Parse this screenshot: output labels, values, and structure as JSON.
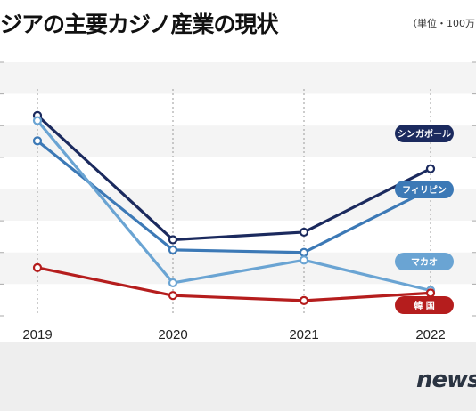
{
  "title": "ジアの主要カジノ産業の現状",
  "unit_note": "（単位・100万",
  "watermark": "news",
  "chart_data": {
    "type": "line",
    "title": "ジアの主要カジノ産業の現状",
    "xlabel": "",
    "ylabel": "",
    "categories": [
      "2019",
      "2020",
      "2021",
      "2022"
    ],
    "ylim": [
      0,
      100
    ],
    "grid": true,
    "legend": "right, labels at line ends",
    "series": [
      {
        "name": "シンガポール",
        "values": [
          79,
          30,
          33,
          58
        ],
        "color": "#1b2a5e"
      },
      {
        "name": "フィリピン",
        "values": [
          69,
          26,
          25,
          50
        ],
        "color": "#3c79b6"
      },
      {
        "name": "マカオ",
        "values": [
          77,
          13,
          22,
          10
        ],
        "color": "#6aa4d3"
      },
      {
        "name": "韓 国",
        "values": [
          19,
          8,
          6,
          9
        ],
        "color": "#b51d1d"
      }
    ]
  }
}
